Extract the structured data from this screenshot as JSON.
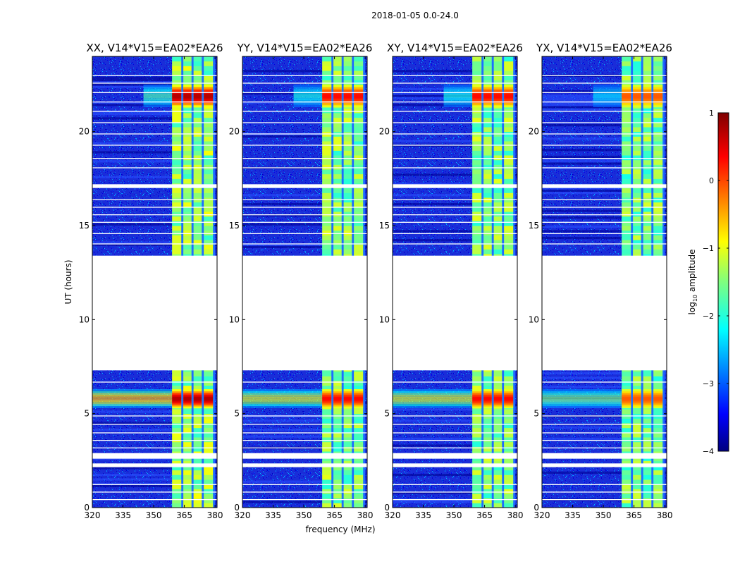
{
  "figure": {
    "title": "2018-01-05 0.0-24.0",
    "xlabel": "frequency (MHz)",
    "ylabel": "UT (hours)"
  },
  "chart_data": [
    {
      "type": "heatmap",
      "title": "XX, V14*V15=EA02*EA26",
      "x_range": [
        320,
        381
      ],
      "y_range": [
        0,
        24
      ],
      "x_ticks": [
        320,
        335,
        350,
        365,
        380
      ],
      "y_ticks": [
        0,
        5,
        10,
        15,
        20
      ],
      "intensity": "strong"
    },
    {
      "type": "heatmap",
      "title": "YY, V14*V15=EA02*EA26",
      "x_range": [
        320,
        381
      ],
      "y_range": [
        0,
        24
      ],
      "x_ticks": [
        320,
        335,
        350,
        365,
        380
      ],
      "y_ticks": [
        0,
        5,
        10,
        15,
        20
      ],
      "intensity": "medium"
    },
    {
      "type": "heatmap",
      "title": "XY, V14*V15=EA02*EA26",
      "x_range": [
        320,
        381
      ],
      "y_range": [
        0,
        24
      ],
      "x_ticks": [
        320,
        335,
        350,
        365,
        380
      ],
      "y_ticks": [
        0,
        5,
        10,
        15,
        20
      ],
      "intensity": "medium"
    },
    {
      "type": "heatmap",
      "title": "YX, V14*V15=EA02*EA26",
      "x_range": [
        320,
        381
      ],
      "y_range": [
        0,
        24
      ],
      "x_ticks": [
        320,
        335,
        350,
        365,
        380
      ],
      "y_ticks": [
        0,
        5,
        10,
        15,
        20
      ],
      "intensity": "weak"
    }
  ],
  "shared": {
    "data_gaps_hours": [
      [
        2.15,
        2.35
      ],
      [
        2.6,
        2.9
      ],
      [
        7.3,
        13.4
      ],
      [
        17.0,
        17.2
      ]
    ],
    "rfi_band_mhz": [
      359,
      380
    ],
    "rfi_columns_mhz": [
      [
        359,
        363.5
      ],
      [
        364.5,
        368.5
      ],
      [
        369.5,
        373.5
      ],
      [
        374.5,
        379
      ]
    ],
    "high_activity_hours": [
      [
        5.3,
        6.3
      ],
      [
        21.3,
        22.5
      ]
    ],
    "colormap": "jet",
    "colorbar": {
      "label": "log10 amplitude",
      "label_main": "log",
      "label_sub": "10",
      "label_rest": " amplitude",
      "range": [
        -4,
        1
      ],
      "ticks": [
        1,
        0,
        -1,
        -2,
        -3,
        -4
      ]
    }
  }
}
